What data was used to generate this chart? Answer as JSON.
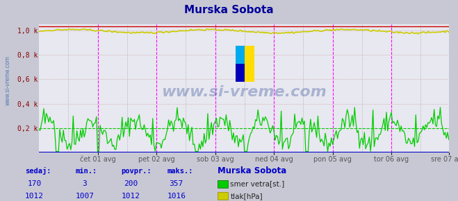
{
  "title": "Murska Sobota",
  "title_color": "#000099",
  "bg_color": "#c8c8d4",
  "plot_bg_color": "#e8e8f0",
  "grid_h_color": "#c8a0a0",
  "vline_magenta": "#ff00ff",
  "vline_gray": "#aaaaaa",
  "hline_green": "#00cc00",
  "hline_y": 0.2,
  "wind_color": "#00cc00",
  "pressure_color": "#cccc00",
  "bottom_blue": "#0000cc",
  "top_red": "#cc0000",
  "ytick_color": "#8B0000",
  "xtick_color": "#555555",
  "watermark_text": "www.si-vreme.com",
  "watermark_color": "#1a3a8a",
  "watermark_alpha": 0.3,
  "left_watermark_color": "#3366aa",
  "x_day_labels": [
    "cet 01 avg",
    "pet 02 avg",
    "sob 03 avg",
    "ned 04 avg",
    "pon 05 avg",
    "tor 06 avg",
    "sre 07 avg"
  ],
  "x_day_labels_display": [
    "čet 01 avg",
    "pet 02 avg",
    "sob 03 avg",
    "ned 04 avg",
    "pon 05 avg",
    "tor 06 avg",
    "sre 07 avg"
  ],
  "num_points": 336,
  "day_vlines": [
    48,
    96,
    144,
    192,
    240,
    288
  ],
  "half_day_vlines": [
    24,
    72,
    120,
    168,
    216,
    264,
    312
  ],
  "ylim": [
    0,
    1.05
  ],
  "yticks": [
    0.2,
    0.4,
    0.6,
    0.8,
    1.0
  ],
  "ytick_labels": [
    "0,2 k",
    "0,4 k",
    "0,6 k",
    "0,8 k",
    "1,0 k"
  ],
  "table_color": "#0000cc",
  "sedaj_label": "sedaj:",
  "min_label": "min.:",
  "povpr_label": "povpr.:",
  "maks_label": "maks.:",
  "station_label": "Murska Sobota",
  "row1_values": [
    "170",
    "3",
    "200",
    "357"
  ],
  "row2_values": [
    "1012",
    "1007",
    "1012",
    "1016"
  ],
  "legend_labels": [
    "smer vetra[st.]",
    "tlak[hPa]"
  ],
  "legend_colors": [
    "#00cc00",
    "#cccc00"
  ],
  "logo_blue_dark": "#0000bb",
  "logo_blue_light": "#00aaee",
  "logo_yellow": "#ffdd00"
}
